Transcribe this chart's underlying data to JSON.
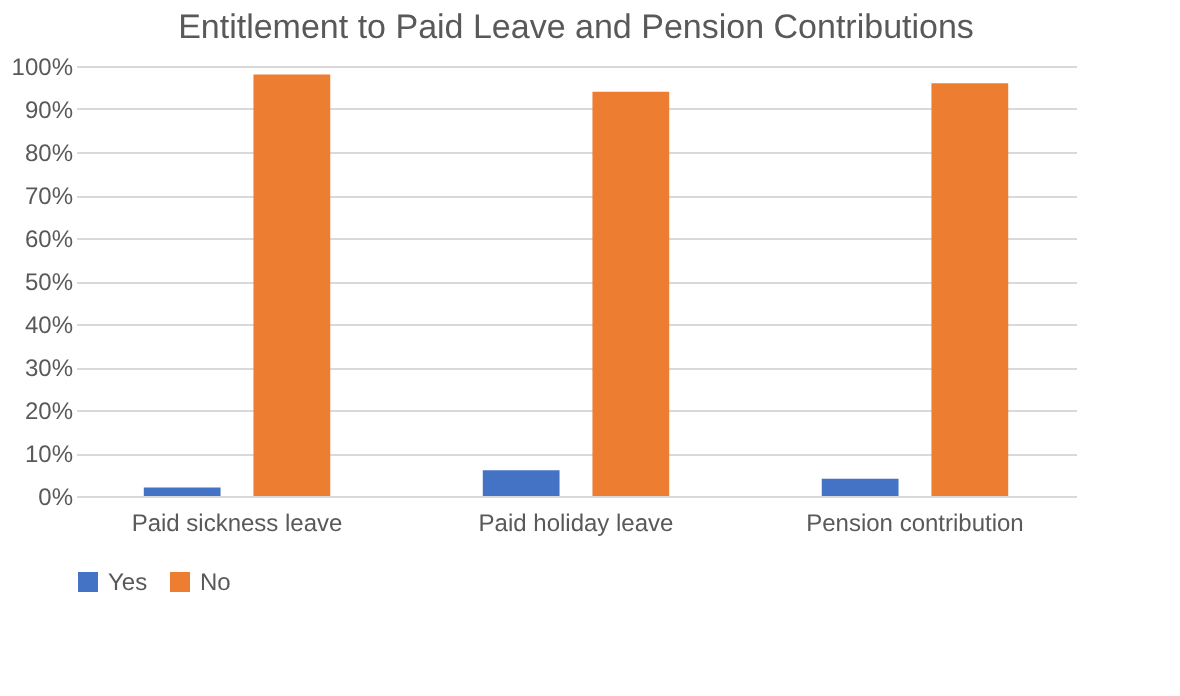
{
  "chart_data": {
    "type": "bar",
    "title": "Entitlement to Paid Leave and Pension Contributions",
    "categories": [
      "Paid sickness leave",
      "Paid holiday leave",
      "Pension contribution"
    ],
    "series": [
      {
        "name": "Yes",
        "color": "#4472c4",
        "values": [
          2,
          6,
          4
        ]
      },
      {
        "name": "No",
        "color": "#ed7d31",
        "values": [
          98,
          94,
          96
        ]
      }
    ],
    "ylim": [
      0,
      100
    ],
    "yticks": [
      {
        "value": 0,
        "label": "0%"
      },
      {
        "value": 10,
        "label": "10%"
      },
      {
        "value": 20,
        "label": "20%"
      },
      {
        "value": 30,
        "label": "30%"
      },
      {
        "value": 40,
        "label": "40%"
      },
      {
        "value": 50,
        "label": "50%"
      },
      {
        "value": 60,
        "label": "60%"
      },
      {
        "value": 70,
        "label": "70%"
      },
      {
        "value": 80,
        "label": "80%"
      },
      {
        "value": 90,
        "label": "90%"
      },
      {
        "value": 100,
        "label": "100%"
      }
    ],
    "grid": "y",
    "legend": "bottom"
  }
}
